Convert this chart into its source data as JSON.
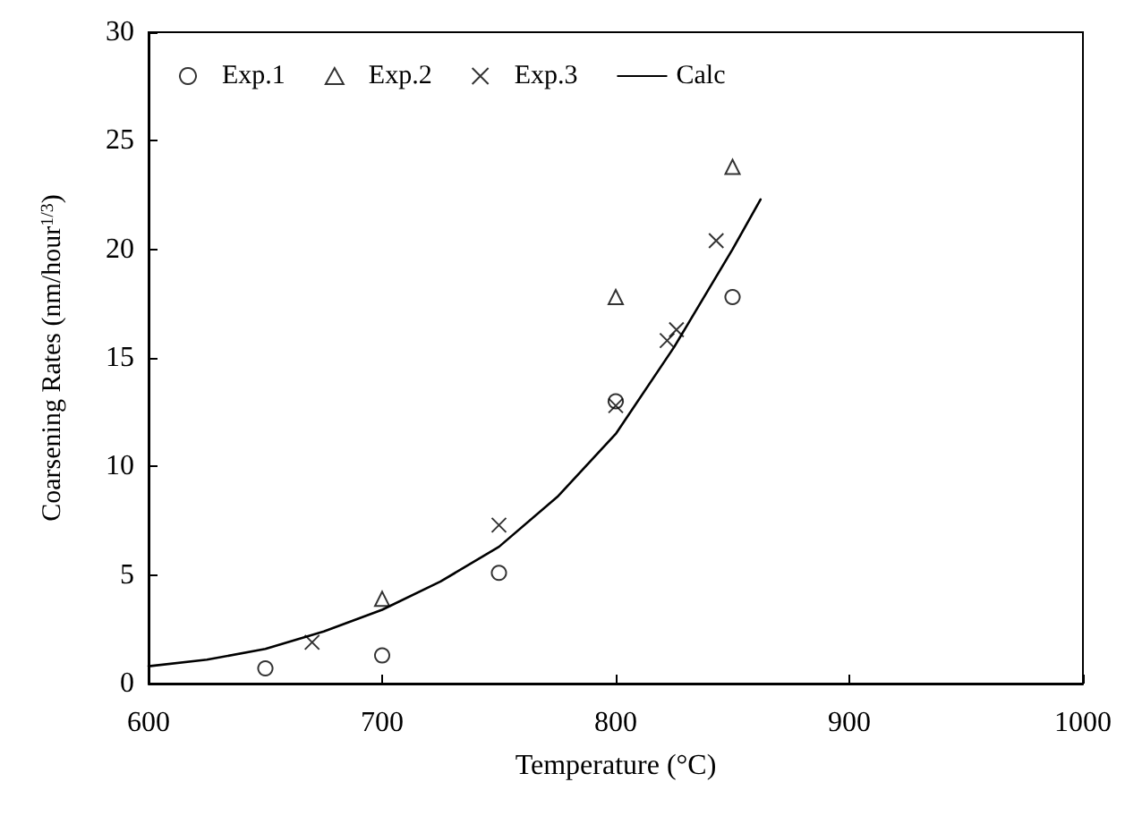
{
  "chart_data": {
    "type": "scatter",
    "xlabel": "Temperature (°C)",
    "ylabel": "Coarsening Rates (nm/hour$^{1/3}$)",
    "xlim": [
      600,
      1000
    ],
    "xticks": [
      600,
      700,
      800,
      900,
      1000
    ],
    "ylim": [
      0,
      30
    ],
    "yticks": [
      0,
      5,
      10,
      15,
      20,
      25,
      30
    ],
    "grid": false,
    "legend": "top left",
    "series": [
      {
        "name": "Exp.1",
        "marker": "circle",
        "color": "#000000",
        "x": [
          650,
          700,
          750,
          800,
          850
        ],
        "values": [
          0.7,
          1.3,
          5.1,
          13,
          17.8
        ]
      },
      {
        "name": "Exp.2",
        "marker": "triangle",
        "color": "#000000",
        "x": [
          700,
          800,
          850
        ],
        "values": [
          3.9,
          17.8,
          23.8
        ]
      },
      {
        "name": "Exp.3",
        "marker": "cross",
        "color": "#000000",
        "x": [
          670,
          750,
          800,
          822,
          826,
          843
        ],
        "values": [
          1.9,
          7.3,
          12.8,
          15.8,
          16.3,
          20.4
        ]
      },
      {
        "name": "Calc",
        "type": "line",
        "marker": "none",
        "line_style": "solid",
        "color": "#000000",
        "x": [
          600,
          625,
          650,
          675,
          700,
          725,
          750,
          775,
          800,
          825,
          850,
          862
        ],
        "values": [
          0.8,
          1.1,
          1.6,
          2.4,
          3.4,
          4.7,
          6.3,
          8.6,
          11.5,
          15.5,
          20,
          22.3
        ]
      }
    ]
  }
}
